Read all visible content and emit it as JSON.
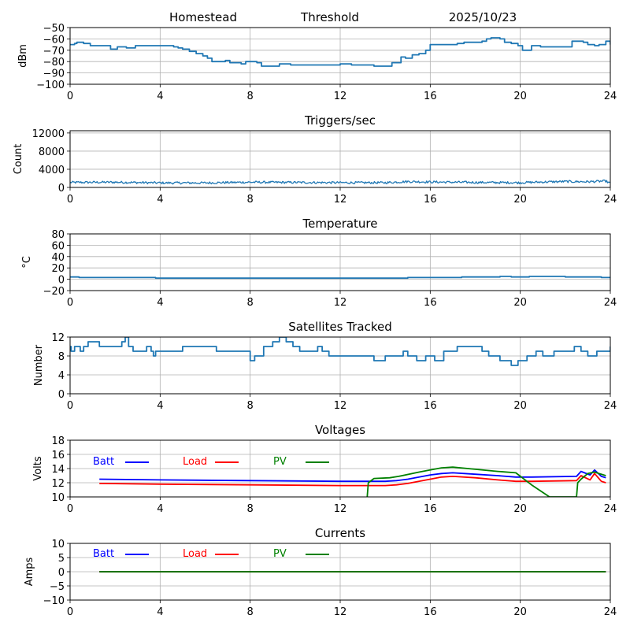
{
  "header": {
    "station": "Homestead",
    "metric": "Threshold",
    "date": "2025/10/23"
  },
  "chart_data": [
    {
      "id": "threshold",
      "type": "line",
      "title": "",
      "xlabel": "",
      "ylabel": "dBm",
      "xlim": [
        0,
        24
      ],
      "ylim": [
        -100,
        -50
      ],
      "xticks": [
        "0",
        "4",
        "8",
        "12",
        "16",
        "20",
        "24"
      ],
      "xtick_values": [
        0,
        4,
        8,
        12,
        16,
        20,
        24
      ],
      "yticks": [
        "−50",
        "−60",
        "−70",
        "−80",
        "−90",
        "−100"
      ],
      "ytick_values": [
        -50,
        -60,
        -70,
        -80,
        -90,
        -100
      ],
      "grid": true,
      "series": [
        {
          "name": "Threshold",
          "color": "#1f77b4",
          "step": true,
          "x": [
            0,
            0.2,
            0.3,
            0.6,
            0.8,
            0.9,
            1.7,
            1.8,
            2.1,
            2.5,
            2.9,
            3.0,
            3.2,
            3.8,
            4.4,
            4.6,
            4.8,
            5.0,
            5.3,
            5.6,
            5.9,
            6.1,
            6.3,
            6.7,
            6.9,
            7.1,
            7.6,
            7.8,
            8.3,
            8.5,
            8.9,
            9.3,
            9.5,
            9.8,
            10.4,
            11.3,
            11.6,
            12.0,
            12.3,
            12.5,
            13.0,
            13.5,
            14.0,
            14.3,
            14.7,
            14.9,
            15.2,
            15.5,
            15.8,
            16.0,
            16.5,
            17.2,
            17.5,
            17.8,
            18.3,
            18.5,
            18.7,
            19.1,
            19.3,
            19.6,
            19.9,
            20.1,
            20.5,
            20.9,
            21.5,
            21.9,
            22.3,
            22.5,
            22.8,
            23.0,
            23.3,
            23.5,
            23.8,
            24.0
          ],
          "y": [
            -65,
            -64,
            -63,
            -64,
            -64,
            -66,
            -66,
            -69,
            -67,
            -68,
            -66,
            -66,
            -66,
            -66,
            -66,
            -67,
            -68,
            -69,
            -71,
            -73,
            -75,
            -77,
            -80,
            -80,
            -79,
            -81,
            -82,
            -80,
            -81,
            -84,
            -84,
            -82,
            -82,
            -83,
            -83,
            -83,
            -83,
            -82,
            -82,
            -83,
            -83,
            -84,
            -84,
            -81,
            -76,
            -77,
            -74,
            -73,
            -70,
            -65,
            -65,
            -64,
            -63,
            -63,
            -62,
            -60,
            -59,
            -60,
            -63,
            -64,
            -66,
            -70,
            -66,
            -67,
            -67,
            -67,
            -62,
            -62,
            -63,
            -65,
            -66,
            -65,
            -62,
            -65
          ]
        }
      ]
    },
    {
      "id": "triggers",
      "type": "line",
      "title": "Triggers/sec",
      "xlabel": "",
      "ylabel": "Count",
      "xlim": [
        0,
        24
      ],
      "ylim": [
        0,
        12500
      ],
      "xticks": [
        "0",
        "4",
        "8",
        "12",
        "16",
        "20",
        "24"
      ],
      "xtick_values": [
        0,
        4,
        8,
        12,
        16,
        20,
        24
      ],
      "yticks": [
        "0",
        "4000",
        "8000",
        "12000"
      ],
      "ytick_values": [
        0,
        4000,
        8000,
        12000
      ],
      "grid": true,
      "series": [
        {
          "name": "Triggers",
          "color": "#1f77b4",
          "noisy": true,
          "noise_amplitude": 250,
          "x": [
            0,
            2,
            4,
            6,
            8,
            10,
            12,
            14,
            15,
            16,
            18,
            20,
            21,
            22,
            23,
            23.8,
            24
          ],
          "y": [
            1100,
            1150,
            1000,
            1000,
            1150,
            1100,
            1050,
            1050,
            1300,
            1200,
            1100,
            1050,
            1200,
            1300,
            1250,
            1400,
            900
          ]
        }
      ]
    },
    {
      "id": "temperature",
      "type": "line",
      "title": "Temperature",
      "xlabel": "",
      "ylabel": "°C",
      "xlim": [
        0,
        24
      ],
      "ylim": [
        -20,
        80
      ],
      "xticks": [
        "0",
        "4",
        "8",
        "12",
        "16",
        "20",
        "24"
      ],
      "xtick_values": [
        0,
        4,
        8,
        12,
        16,
        20,
        24
      ],
      "yticks": [
        "−20",
        "0",
        "20",
        "40",
        "60",
        "80"
      ],
      "ytick_values": [
        -20,
        0,
        20,
        40,
        60,
        80
      ],
      "grid": true,
      "series": [
        {
          "name": "Temperature",
          "color": "#1f77b4",
          "step": true,
          "x": [
            0,
            0.4,
            3.8,
            15.0,
            17.4,
            19.1,
            19.6,
            20.4,
            22.0,
            23.6,
            24
          ],
          "y": [
            4,
            3,
            2,
            3,
            4,
            5,
            4,
            5,
            4,
            3,
            3
          ]
        }
      ]
    },
    {
      "id": "satellites",
      "type": "line",
      "title": "Satellites Tracked",
      "xlabel": "",
      "ylabel": "Number",
      "xlim": [
        0,
        24
      ],
      "ylim": [
        0,
        12
      ],
      "xticks": [
        "0",
        "4",
        "8",
        "12",
        "16",
        "20",
        "24"
      ],
      "xtick_values": [
        0,
        4,
        8,
        12,
        16,
        20,
        24
      ],
      "yticks": [
        "0",
        "4",
        "8",
        "12"
      ],
      "ytick_values": [
        0,
        4,
        8,
        12
      ],
      "grid": true,
      "series": [
        {
          "name": "Satellites",
          "color": "#1f77b4",
          "step": true,
          "x": [
            0,
            0.05,
            0.2,
            0.45,
            0.6,
            0.8,
            1.3,
            2.2,
            2.3,
            2.45,
            2.6,
            2.8,
            3.4,
            3.6,
            3.7,
            3.8,
            4.8,
            5.0,
            5.6,
            6.0,
            6.5,
            7.2,
            8.0,
            8.2,
            8.6,
            9.0,
            9.3,
            9.6,
            9.9,
            10.2,
            10.6,
            11.0,
            11.2,
            11.5,
            12.0,
            12.4,
            13.5,
            14.0,
            14.8,
            15.0,
            15.4,
            15.8,
            16.2,
            16.6,
            17.2,
            18.3,
            18.6,
            19.1,
            19.6,
            19.9,
            20.3,
            20.7,
            21.0,
            21.5,
            22.4,
            22.7,
            23.0,
            23.4,
            23.8,
            24
          ],
          "y": [
            10,
            9,
            10,
            9,
            10,
            11,
            10,
            10,
            11,
            12,
            10,
            9,
            10,
            9,
            8,
            9,
            9,
            10,
            10,
            10,
            9,
            9,
            7,
            8,
            10,
            11,
            12,
            11,
            10,
            9,
            9,
            10,
            9,
            8,
            8,
            8,
            7,
            8,
            9,
            8,
            7,
            8,
            7,
            9,
            10,
            9,
            8,
            7,
            6,
            7,
            8,
            9,
            8,
            9,
            10,
            9,
            8,
            9,
            9,
            10
          ]
        }
      ]
    },
    {
      "id": "voltages",
      "type": "line",
      "title": "Voltages",
      "xlabel": "",
      "ylabel": "Volts",
      "xlim": [
        0,
        24
      ],
      "ylim": [
        10,
        18
      ],
      "xticks": [
        "0",
        "4",
        "8",
        "12",
        "16",
        "20",
        "24"
      ],
      "xtick_values": [
        0,
        4,
        8,
        12,
        16,
        20,
        24
      ],
      "yticks": [
        "10",
        "12",
        "14",
        "16",
        "18"
      ],
      "ytick_values": [
        10,
        12,
        14,
        16,
        18
      ],
      "grid": true,
      "legend": {
        "placement": "top-left",
        "entries": [
          "Batt",
          "Load",
          "PV"
        ]
      },
      "series": [
        {
          "name": "Batt",
          "color": "#0000ff",
          "x": [
            1.3,
            4,
            8,
            12,
            14,
            14.5,
            15,
            16,
            16.5,
            17,
            18,
            19,
            19.8,
            20.5,
            22.5,
            22.7,
            23.1,
            23.3,
            23.6,
            23.8
          ],
          "y": [
            12.5,
            12.4,
            12.3,
            12.2,
            12.2,
            12.3,
            12.5,
            13.1,
            13.3,
            13.4,
            13.2,
            13.0,
            12.8,
            12.8,
            12.9,
            13.6,
            13.1,
            13.8,
            12.9,
            12.7
          ]
        },
        {
          "name": "Load",
          "color": "#ff0000",
          "x": [
            1.3,
            4,
            8,
            12,
            14,
            14.5,
            15,
            16,
            16.5,
            17,
            18,
            19,
            19.8,
            20.5,
            22.5,
            22.7,
            23.1,
            23.3,
            23.6,
            23.8
          ],
          "y": [
            11.9,
            11.8,
            11.7,
            11.6,
            11.6,
            11.7,
            11.9,
            12.5,
            12.8,
            12.9,
            12.7,
            12.4,
            12.2,
            12.2,
            12.3,
            13.0,
            12.4,
            13.3,
            12.2,
            12.0
          ]
        },
        {
          "name": "PV",
          "color": "#008000",
          "x": [
            13.2,
            13.25,
            13.5,
            14.2,
            14.6,
            15.5,
            16.0,
            16.5,
            17.0,
            18.0,
            19.0,
            19.8,
            20.5,
            21.3,
            22.5,
            22.55,
            22.7,
            23.0,
            23.3,
            23.8
          ],
          "y": [
            10.0,
            12.0,
            12.6,
            12.7,
            12.9,
            13.5,
            13.8,
            14.1,
            14.2,
            13.9,
            13.6,
            13.4,
            11.7,
            10.0,
            10.0,
            12.0,
            12.5,
            13.3,
            13.5,
            13.0
          ]
        }
      ]
    },
    {
      "id": "currents",
      "type": "line",
      "title": "Currents",
      "xlabel": "",
      "ylabel": "Amps",
      "xlim": [
        0,
        24
      ],
      "ylim": [
        -10,
        10
      ],
      "xticks": [
        "0",
        "4",
        "8",
        "12",
        "16",
        "20",
        "24"
      ],
      "xtick_values": [
        0,
        4,
        8,
        12,
        16,
        20,
        24
      ],
      "yticks": [
        "−10",
        "−5",
        "0",
        "5",
        "10"
      ],
      "ytick_values": [
        -10,
        -5,
        0,
        5,
        10
      ],
      "grid": true,
      "legend": {
        "placement": "top-left",
        "entries": [
          "Batt",
          "Load",
          "PV"
        ]
      },
      "series": [
        {
          "name": "Batt",
          "color": "#0000ff",
          "x": [
            1.3,
            23.8
          ],
          "y": [
            0,
            0
          ]
        },
        {
          "name": "Load",
          "color": "#ff0000",
          "x": [
            1.3,
            23.8
          ],
          "y": [
            0,
            0
          ]
        },
        {
          "name": "PV",
          "color": "#008000",
          "x": [
            1.3,
            23.8
          ],
          "y": [
            0,
            0
          ]
        }
      ]
    }
  ]
}
